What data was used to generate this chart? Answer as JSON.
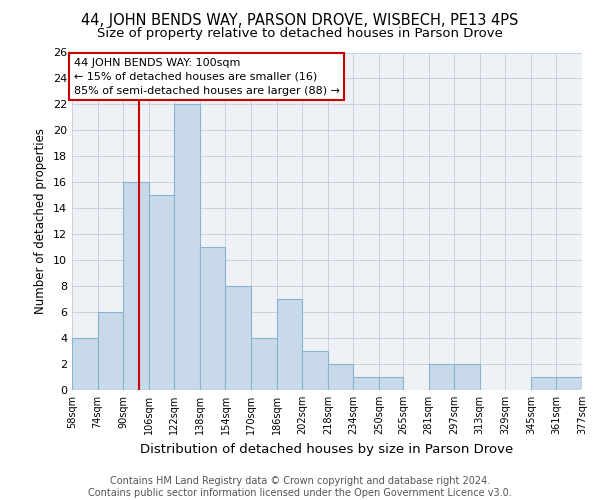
{
  "title": "44, JOHN BENDS WAY, PARSON DROVE, WISBECH, PE13 4PS",
  "subtitle": "Size of property relative to detached houses in Parson Drove",
  "xlabel": "Distribution of detached houses by size in Parson Drove",
  "ylabel": "Number of detached properties",
  "bar_color": "#c8daea",
  "bar_edge_color": "#8ab4cc",
  "bin_edges": [
    58,
    74,
    90,
    106,
    122,
    138,
    154,
    170,
    186,
    202,
    218,
    234,
    250,
    265,
    281,
    297,
    313,
    329,
    345,
    361,
    377
  ],
  "bin_labels": [
    "58sqm",
    "74sqm",
    "90sqm",
    "106sqm",
    "122sqm",
    "138sqm",
    "154sqm",
    "170sqm",
    "186sqm",
    "202sqm",
    "218sqm",
    "234sqm",
    "250sqm",
    "265sqm",
    "281sqm",
    "297sqm",
    "313sqm",
    "329sqm",
    "345sqm",
    "361sqm",
    "377sqm"
  ],
  "counts": [
    4,
    6,
    16,
    15,
    22,
    11,
    8,
    4,
    7,
    3,
    2,
    1,
    1,
    0,
    2,
    2,
    0,
    0,
    1,
    1
  ],
  "property_size": 100,
  "red_line_color": "#cc0000",
  "annotation_line1": "44 JOHN BENDS WAY: 100sqm",
  "annotation_line2": "← 15% of detached houses are smaller (16)",
  "annotation_line3": "85% of semi-detached houses are larger (88) →",
  "annotation_box_color": "#ffffff",
  "annotation_border_color": "#cc0000",
  "ylim": [
    0,
    26
  ],
  "yticks": [
    0,
    2,
    4,
    6,
    8,
    10,
    12,
    14,
    16,
    18,
    20,
    22,
    24,
    26
  ],
  "background_color": "#eef2f7",
  "footer_text": "Contains HM Land Registry data © Crown copyright and database right 2024.\nContains public sector information licensed under the Open Government Licence v3.0.",
  "title_fontsize": 10.5,
  "subtitle_fontsize": 9.5,
  "xlabel_fontsize": 9.5,
  "ylabel_fontsize": 8.5,
  "tick_fontsize": 8,
  "footer_fontsize": 7
}
